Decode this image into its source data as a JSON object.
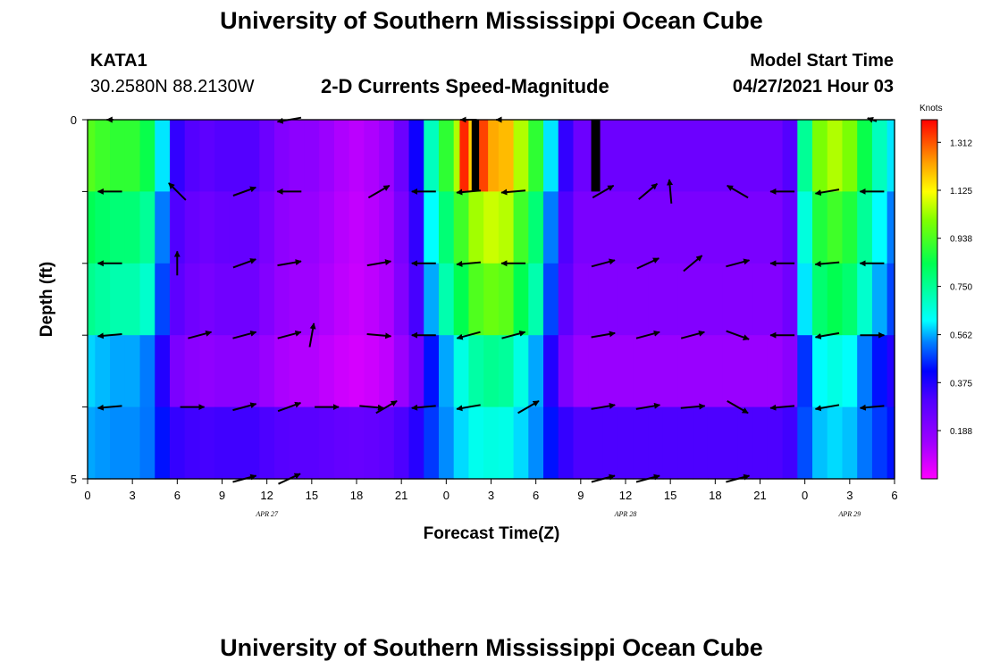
{
  "title_top": "University of Southern Mississippi Ocean Cube",
  "title_bottom": "University of Southern Mississippi Ocean Cube",
  "station": {
    "id": "KATA1",
    "coords": "30.2580N  88.2130W"
  },
  "model": {
    "label": "Model Start Time",
    "value": "04/27/2021 Hour 03"
  },
  "chart_data": {
    "type": "heatmap",
    "title": "2-D Currents Speed-Magnitude",
    "xlabel": "Forecast Time(Z)",
    "ylabel": "Depth (ft)",
    "colorbar_label": "Knots",
    "colorbar_ticks": [
      "1.312",
      "1.125",
      "0.938",
      "0.750",
      "0.562",
      "0.375",
      "0.188"
    ],
    "speed_range": [
      0,
      1.4
    ],
    "x_tick_labels": [
      "0",
      "3",
      "6",
      "9",
      "12",
      "15",
      "18",
      "21",
      "0",
      "3",
      "6",
      "9",
      "12",
      "15",
      "18",
      "21",
      "0",
      "3",
      "6"
    ],
    "date_labels": [
      {
        "label": "APR 27",
        "hour": 12
      },
      {
        "label": "APR 28",
        "hour": 36
      },
      {
        "label": "APR 29",
        "hour": 51
      }
    ],
    "x_range_hours": [
      0,
      54
    ],
    "y_tick_labels": [
      "0",
      "5"
    ],
    "depth_rows": 5,
    "speed_by_hour": [
      0.95,
      0.92,
      0.9,
      0.9,
      0.85,
      0.6,
      0.35,
      0.3,
      0.28,
      0.3,
      0.3,
      0.3,
      0.25,
      0.2,
      0.18,
      0.18,
      0.15,
      0.12,
      0.1,
      0.12,
      0.15,
      0.25,
      0.4,
      0.7,
      0.9,
      1.05,
      1.18,
      1.22,
      1.2,
      1.05,
      0.9,
      0.6,
      0.35,
      0.25,
      0.25,
      0.25,
      0.25,
      0.25,
      0.25,
      0.25,
      0.25,
      0.25,
      0.25,
      0.25,
      0.25,
      0.25,
      0.25,
      0.3,
      0.75,
      1.0,
      1.05,
      1.0,
      0.85,
      0.7,
      0.6
    ],
    "depth_factors": [
      1.0,
      0.88,
      0.8,
      0.62,
      0.45
    ],
    "bottom_row_speed": 0.33,
    "spikes": [
      {
        "hour": 25.2,
        "speed": 1.36
      },
      {
        "hour": 26.0,
        "speed": 1.45
      },
      {
        "hour": 26.5,
        "speed": 1.33
      },
      {
        "hour": 34.0,
        "speed": 1.45
      }
    ],
    "arrows": [
      {
        "hour": 1.5,
        "depth": 0,
        "dir": 270,
        "len": 0.4
      },
      {
        "hour": 13.5,
        "depth": 0,
        "dir": 260,
        "len": 1.5
      },
      {
        "hour": 25.5,
        "depth": 0,
        "dir": 270,
        "len": 1.0
      },
      {
        "hour": 27.5,
        "depth": 0,
        "dir": 270,
        "len": 0.3
      },
      {
        "hour": 52.5,
        "depth": 0,
        "dir": 290,
        "len": 0.6
      },
      {
        "hour": 1.5,
        "depth": 1,
        "dir": 270,
        "len": 1.5
      },
      {
        "hour": 6.0,
        "depth": 1,
        "dir": 315,
        "len": 1.5
      },
      {
        "hour": 10.5,
        "depth": 1,
        "dir": 70,
        "len": 1.5
      },
      {
        "hour": 13.5,
        "depth": 1,
        "dir": 270,
        "len": 1.5
      },
      {
        "hour": 19.5,
        "depth": 1,
        "dir": 60,
        "len": 1.5
      },
      {
        "hour": 22.5,
        "depth": 1,
        "dir": 270,
        "len": 1.5
      },
      {
        "hour": 25.5,
        "depth": 1,
        "dir": 265,
        "len": 1.5
      },
      {
        "hour": 28.5,
        "depth": 1,
        "dir": 265,
        "len": 1.5
      },
      {
        "hour": 34.5,
        "depth": 1,
        "dir": 60,
        "len": 1.5
      },
      {
        "hour": 37.5,
        "depth": 1,
        "dir": 50,
        "len": 1.5
      },
      {
        "hour": 39.0,
        "depth": 1,
        "dir": 355,
        "len": 1.5
      },
      {
        "hour": 43.5,
        "depth": 1,
        "dir": 300,
        "len": 1.5
      },
      {
        "hour": 46.5,
        "depth": 1,
        "dir": 270,
        "len": 1.5
      },
      {
        "hour": 49.5,
        "depth": 1,
        "dir": 260,
        "len": 1.5
      },
      {
        "hour": 52.5,
        "depth": 1,
        "dir": 270,
        "len": 1.5
      },
      {
        "hour": 1.5,
        "depth": 2,
        "dir": 270,
        "len": 1.5
      },
      {
        "hour": 6.0,
        "depth": 2,
        "dir": 0,
        "len": 1.5
      },
      {
        "hour": 10.5,
        "depth": 2,
        "dir": 70,
        "len": 1.5
      },
      {
        "hour": 13.5,
        "depth": 2,
        "dir": 80,
        "len": 1.5
      },
      {
        "hour": 19.5,
        "depth": 2,
        "dir": 80,
        "len": 1.5
      },
      {
        "hour": 22.5,
        "depth": 2,
        "dir": 270,
        "len": 1.5
      },
      {
        "hour": 25.5,
        "depth": 2,
        "dir": 265,
        "len": 1.5
      },
      {
        "hour": 28.5,
        "depth": 2,
        "dir": 270,
        "len": 1.5
      },
      {
        "hour": 34.5,
        "depth": 2,
        "dir": 75,
        "len": 1.5
      },
      {
        "hour": 37.5,
        "depth": 2,
        "dir": 65,
        "len": 1.5
      },
      {
        "hour": 40.5,
        "depth": 2,
        "dir": 50,
        "len": 1.5
      },
      {
        "hour": 43.5,
        "depth": 2,
        "dir": 75,
        "len": 1.5
      },
      {
        "hour": 46.5,
        "depth": 2,
        "dir": 270,
        "len": 1.5
      },
      {
        "hour": 49.5,
        "depth": 2,
        "dir": 265,
        "len": 1.5
      },
      {
        "hour": 52.5,
        "depth": 2,
        "dir": 270,
        "len": 1.5
      },
      {
        "hour": 1.5,
        "depth": 3,
        "dir": 265,
        "len": 1.5
      },
      {
        "hour": 7.5,
        "depth": 3,
        "dir": 75,
        "len": 1.5
      },
      {
        "hour": 10.5,
        "depth": 3,
        "dir": 75,
        "len": 1.5
      },
      {
        "hour": 13.5,
        "depth": 3,
        "dir": 75,
        "len": 1.5
      },
      {
        "hour": 15.0,
        "depth": 3,
        "dir": 10,
        "len": 1.5
      },
      {
        "hour": 19.5,
        "depth": 3,
        "dir": 95,
        "len": 1.5
      },
      {
        "hour": 22.5,
        "depth": 3,
        "dir": 270,
        "len": 1.5
      },
      {
        "hour": 25.5,
        "depth": 3,
        "dir": 255,
        "len": 1.5
      },
      {
        "hour": 28.5,
        "depth": 3,
        "dir": 75,
        "len": 1.5
      },
      {
        "hour": 34.5,
        "depth": 3,
        "dir": 80,
        "len": 1.5
      },
      {
        "hour": 37.5,
        "depth": 3,
        "dir": 75,
        "len": 1.5
      },
      {
        "hour": 40.5,
        "depth": 3,
        "dir": 75,
        "len": 1.5
      },
      {
        "hour": 43.5,
        "depth": 3,
        "dir": 110,
        "len": 1.5
      },
      {
        "hour": 46.5,
        "depth": 3,
        "dir": 270,
        "len": 1.5
      },
      {
        "hour": 49.5,
        "depth": 3,
        "dir": 260,
        "len": 1.5
      },
      {
        "hour": 52.5,
        "depth": 3,
        "dir": 90,
        "len": 1.5
      },
      {
        "hour": 1.5,
        "depth": 4,
        "dir": 265,
        "len": 1.5
      },
      {
        "hour": 7.0,
        "depth": 4,
        "dir": 90,
        "len": 1.5
      },
      {
        "hour": 10.5,
        "depth": 4,
        "dir": 75,
        "len": 1.5
      },
      {
        "hour": 13.5,
        "depth": 4,
        "dir": 70,
        "len": 1.5
      },
      {
        "hour": 16.0,
        "depth": 4,
        "dir": 90,
        "len": 1.5
      },
      {
        "hour": 19.0,
        "depth": 4,
        "dir": 95,
        "len": 1.5
      },
      {
        "hour": 20.0,
        "depth": 4,
        "dir": 60,
        "len": 1.5
      },
      {
        "hour": 22.5,
        "depth": 4,
        "dir": 265,
        "len": 1.5
      },
      {
        "hour": 25.5,
        "depth": 4,
        "dir": 260,
        "len": 1.5
      },
      {
        "hour": 29.5,
        "depth": 4,
        "dir": 60,
        "len": 1.5
      },
      {
        "hour": 34.5,
        "depth": 4,
        "dir": 80,
        "len": 1.5
      },
      {
        "hour": 37.5,
        "depth": 4,
        "dir": 80,
        "len": 1.5
      },
      {
        "hour": 40.5,
        "depth": 4,
        "dir": 85,
        "len": 1.5
      },
      {
        "hour": 43.5,
        "depth": 4,
        "dir": 120,
        "len": 1.5
      },
      {
        "hour": 46.5,
        "depth": 4,
        "dir": 265,
        "len": 1.5
      },
      {
        "hour": 49.5,
        "depth": 4,
        "dir": 260,
        "len": 1.5
      },
      {
        "hour": 52.5,
        "depth": 4,
        "dir": 265,
        "len": 1.5
      },
      {
        "hour": 10.5,
        "depth": 5,
        "dir": 75,
        "len": 1.5
      },
      {
        "hour": 13.5,
        "depth": 5,
        "dir": 65,
        "len": 1.5
      },
      {
        "hour": 34.5,
        "depth": 5,
        "dir": 75,
        "len": 1.5
      },
      {
        "hour": 37.5,
        "depth": 5,
        "dir": 75,
        "len": 1.5
      },
      {
        "hour": 43.5,
        "depth": 5,
        "dir": 75,
        "len": 1.5
      }
    ]
  }
}
